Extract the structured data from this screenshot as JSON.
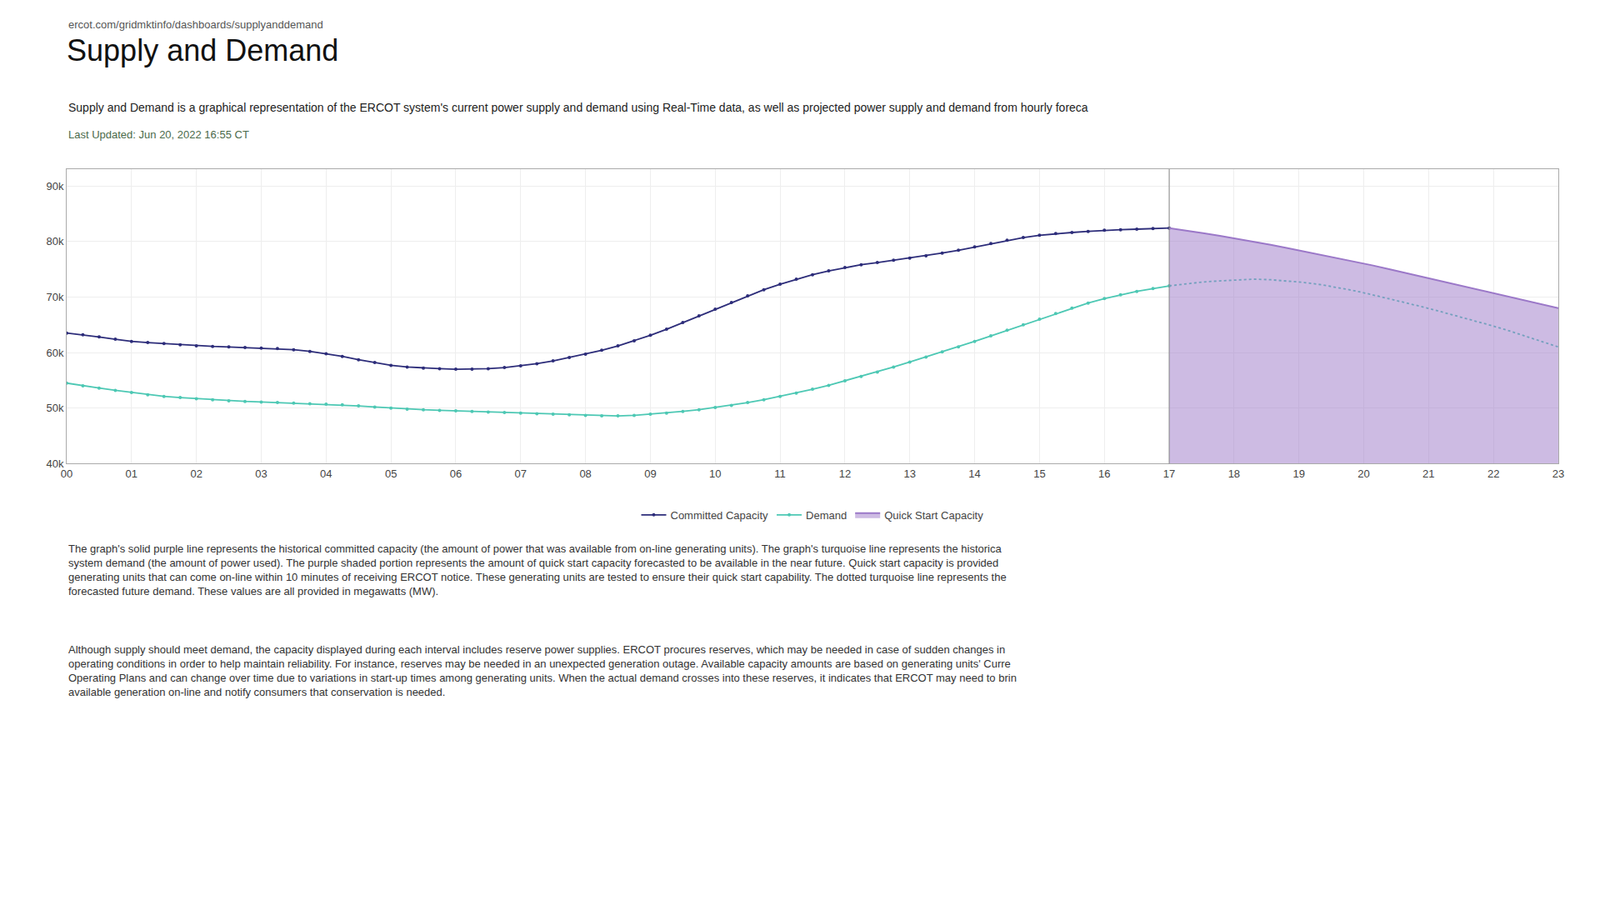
{
  "chart_data": {
    "type": "line",
    "title": "Supply and Demand",
    "subtitle": "Supply and Demand is a graphical representation of the ERCOT system's current power supply and demand using Real-Time data, as well as projected power supply and demand from hourly foreca",
    "annotations": [
      "ercot.com/gridmktinfo/dashboards/supplyanddemand",
      "Last Updated: Jun 20, 2022 16:55 CT",
      "The graph's solid purple line represents the historical committed capacity (the amount of power that was available from on-line generating units). The graph's turquoise line represents the historica\nsystem demand (the amount of power used). The purple shaded portion represents the amount of quick start capacity forecasted to be available in the near future. Quick start capacity is provided\ngenerating units that can come on-line within 10 minutes of receiving ERCOT notice. These generating units are tested to ensure their quick start capability. The dotted turquoise line represents the\nforecasted future demand. These values are all provided in megawatts (MW).",
      "Although supply should meet demand, the capacity displayed during each interval includes reserve power supplies. ERCOT procures reserves, which may be needed in case of sudden changes in\noperating conditions in order to help maintain reliability. For instance, reserves may be needed in an unexpected generation outage. Available capacity amounts are based on generating units' Curre\nOperating Plans and can change over time due to variations in start-up times among generating units. When the actual demand crosses into these reserves, it indicates that ERCOT may need to brin\navailable generation on-line and notify consumers that conservation is needed."
    ],
    "xlim": [
      0,
      23
    ],
    "xticks": [
      {
        "value": 0,
        "label": "00"
      },
      {
        "value": 1,
        "label": "01"
      },
      {
        "value": 2,
        "label": "02"
      },
      {
        "value": 3,
        "label": "03"
      },
      {
        "value": 4,
        "label": "04"
      },
      {
        "value": 5,
        "label": "05"
      },
      {
        "value": 6,
        "label": "06"
      },
      {
        "value": 7,
        "label": "07"
      },
      {
        "value": 8,
        "label": "08"
      },
      {
        "value": 9,
        "label": "09"
      },
      10,
      11,
      12,
      13,
      14,
      15,
      16,
      17,
      18,
      19,
      20,
      21,
      22,
      23
    ],
    "ylim": [
      40000,
      93000
    ],
    "yticks": [
      {
        "value": 40000,
        "label": "40k"
      },
      {
        "value": 50000,
        "label": "50k"
      },
      {
        "value": 60000,
        "label": "60k"
      },
      {
        "value": 70000,
        "label": "70k"
      },
      {
        "value": 80000,
        "label": "80k"
      },
      {
        "value": 90000,
        "label": "90k"
      }
    ],
    "grid": true,
    "legend": "bottom",
    "series": [
      {
        "name": "Committed Capacity",
        "color": "#2d2d7a",
        "marker": "circle",
        "line_style": "solid",
        "x": [
          0,
          0.25,
          0.5,
          0.75,
          1,
          1.25,
          1.5,
          1.75,
          2,
          2.25,
          2.5,
          2.75,
          3,
          3.25,
          3.5,
          3.75,
          4,
          4.25,
          4.5,
          4.75,
          5,
          5.25,
          5.5,
          5.75,
          6,
          6.25,
          6.5,
          6.75,
          7,
          7.25,
          7.5,
          7.75,
          8,
          8.25,
          8.5,
          8.75,
          9,
          9.25,
          9.5,
          9.75,
          10,
          10.25,
          10.5,
          10.75,
          11,
          11.25,
          11.5,
          11.75,
          12,
          12.25,
          12.5,
          12.75,
          13,
          13.25,
          13.5,
          13.75,
          14,
          14.25,
          14.5,
          14.75,
          15,
          15.25,
          15.5,
          15.75,
          16,
          16.25,
          16.5,
          16.75,
          17
        ],
        "values": [
          63500,
          63200,
          62800,
          62400,
          62000,
          61800,
          61600,
          61400,
          61200,
          61100,
          61000,
          60900,
          60800,
          60700,
          60500,
          60200,
          59800,
          59300,
          58700,
          58200,
          57700,
          57400,
          57200,
          57100,
          57000,
          57000,
          57100,
          57300,
          57600,
          58000,
          58500,
          59100,
          59700,
          60400,
          61200,
          62100,
          63100,
          64200,
          65400,
          66600,
          67800,
          69000,
          70200,
          71300,
          72300,
          73200,
          74000,
          74700,
          75300,
          75800,
          76200,
          76600,
          77000,
          77400,
          77900,
          78400,
          79000,
          79600,
          80200,
          80700,
          81100,
          81400,
          81600,
          81800,
          82000,
          82100,
          82200,
          82300,
          82400
        ]
      },
      {
        "name": "Demand",
        "color": "#4dc8b4",
        "marker": "circle",
        "line_style": "solid",
        "x": [
          0,
          0.25,
          0.5,
          0.75,
          1,
          1.25,
          1.5,
          1.75,
          2,
          2.25,
          2.5,
          2.75,
          3,
          3.25,
          3.5,
          3.75,
          4,
          4.25,
          4.5,
          4.75,
          5,
          5.25,
          5.5,
          5.75,
          6,
          6.25,
          6.5,
          6.75,
          7,
          7.25,
          7.5,
          7.75,
          8,
          8.25,
          8.5,
          8.75,
          9,
          9.25,
          9.5,
          9.75,
          10,
          10.25,
          10.5,
          10.75,
          11,
          11.25,
          11.5,
          11.75,
          12,
          12.25,
          12.5,
          12.75,
          13,
          13.25,
          13.5,
          13.75,
          14,
          14.25,
          14.5,
          14.75,
          15,
          15.25,
          15.5,
          15.75,
          16,
          16.25,
          16.5,
          16.75,
          17
        ],
        "values": [
          54500,
          54000,
          53600,
          53200,
          52800,
          52400,
          52100,
          51900,
          51700,
          51500,
          51300,
          51200,
          51100,
          51000,
          50900,
          50800,
          50700,
          50600,
          50400,
          50200,
          50000,
          49800,
          49700,
          49600,
          49500,
          49400,
          49300,
          49200,
          49100,
          49000,
          48900,
          48800,
          48700,
          48600,
          48600,
          48700,
          48900,
          49100,
          49400,
          49700,
          50100,
          50500,
          51000,
          51500,
          52100,
          52700,
          53400,
          54100,
          54900,
          55700,
          56500,
          57400,
          58300,
          59200,
          60100,
          61000,
          62000,
          63000,
          64000,
          65000,
          66000,
          67000,
          68000,
          68900,
          69700,
          70400,
          71000,
          71500,
          72000
        ]
      },
      {
        "name": "Demand",
        "color": "#4dc8b4",
        "line_style": "dotted",
        "x": [
          17,
          17.26087,
          17.521739,
          17.782609,
          18.043478,
          18.304348,
          18.565217,
          18.826087,
          19.086957,
          19.347826,
          19.608696,
          19.869565,
          20.130435,
          20.391304,
          20.652174,
          20.913043,
          21.173913,
          21.434783,
          21.695652,
          21.956522,
          22.217391,
          22.478261,
          22.73913,
          23
        ],
        "values": [
          72000,
          72400,
          72700,
          72900,
          73100,
          73200,
          73100,
          72900,
          72600,
          72200,
          71700,
          71100,
          70400,
          69700,
          69000,
          68200,
          67400,
          66600,
          65800,
          64900,
          64000,
          63000,
          62000,
          61000
        ]
      },
      {
        "name": "Quick Start Capacity",
        "color": "#9b78c8",
        "type": "area",
        "line_style": "solid",
        "x": [
          17,
          17.26087,
          17.521739,
          17.782609,
          18.043478,
          18.304348,
          18.565217,
          18.826087,
          19.086957,
          19.347826,
          19.608696,
          19.869565,
          20.130435,
          20.391304,
          20.652174,
          20.913043,
          21.173913,
          21.434783,
          21.695652,
          21.956522,
          22.217391,
          22.478261,
          22.73913,
          23
        ],
        "values": [
          82400,
          82000,
          81500,
          81000,
          80500,
          80000,
          79400,
          78800,
          78200,
          77600,
          77000,
          76400,
          75700,
          75000,
          74300,
          73600,
          72900,
          72200,
          71500,
          70800,
          70100,
          69400,
          68700,
          68000
        ]
      }
    ]
  }
}
